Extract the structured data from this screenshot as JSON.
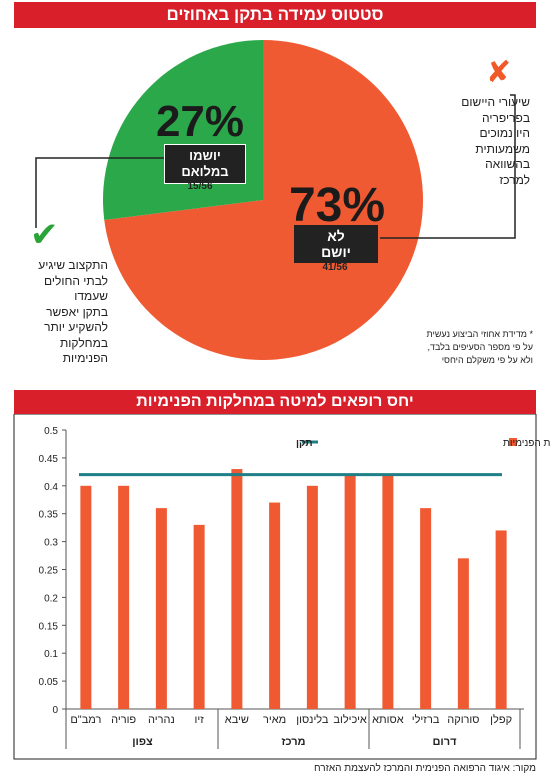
{
  "top_banner": "סטטוס עמידה בתקן באחוזים",
  "bottom_banner": "יחס רופאים למיטה במחלקות הפנימיות",
  "pie": {
    "slices": [
      {
        "percent_label": "73%",
        "label": "לא\nיושם",
        "fraction": "41/56",
        "value": 73,
        "color": "#f05a32"
      },
      {
        "percent_label": "27%",
        "label": "יושמו\nבמלואם",
        "fraction": "15/56",
        "value": 27,
        "color": "#2aa84a"
      }
    ]
  },
  "right_note": "שיעורי היישום\nבפריפריה\nהיו נמוכים\nמשמעותית\nבהשוואה\nלמרכז",
  "left_note": "התקצוב שיגיע\nלבתי החולים\nשעמדו\nבתקן יאפשר\nלהשקיע יותר\nבמחלקות\nהפנימיות",
  "footnote": "* מדידת אחוזי הביצוע נעשית\nעל פי מספר הסעיפים בלבד,\nולא על פי משקלם היחסי",
  "icons": {
    "x": "x-mark-icon",
    "check": "check-mark-icon"
  },
  "chart_data": {
    "type": "bar",
    "categories": [
      "רמב\"ם",
      "פוריה",
      "נהריה",
      "זיו",
      "שיבא",
      "מאיר",
      "בלינסון",
      "איכילוב",
      "אסותא",
      "ברזילי",
      "סורוקה",
      "קפלן"
    ],
    "series": [
      {
        "name": "יחס רופאים מיטה במחלקות הפנימיות",
        "values": [
          0.4,
          0.4,
          0.36,
          0.33,
          0.43,
          0.37,
          0.4,
          0.42,
          0.42,
          0.36,
          0.27,
          0.32
        ],
        "color": "#f05a32"
      },
      {
        "name": "תקן",
        "values": [
          0.42,
          0.42,
          0.42,
          0.42,
          0.42,
          0.42,
          0.42,
          0.42,
          0.42,
          0.42,
          0.42,
          0.42
        ],
        "color": "#1e7f86"
      }
    ],
    "groups": [
      {
        "name": "צפון",
        "count": 4
      },
      {
        "name": "מרכז",
        "count": 4
      },
      {
        "name": "דרום",
        "count": 4
      }
    ],
    "yticks": [
      "0",
      "0.05",
      "0.1",
      "0.15",
      "0.2",
      "0.25",
      "0.3",
      "0.35",
      "0.4",
      "0.45",
      "0.5"
    ],
    "ylim": [
      0,
      0.5
    ],
    "legend_position": "top-right",
    "grid": false
  },
  "source": "מקור: איגוד הרפואה הפנימית והמרכז להעצמת האזרח"
}
